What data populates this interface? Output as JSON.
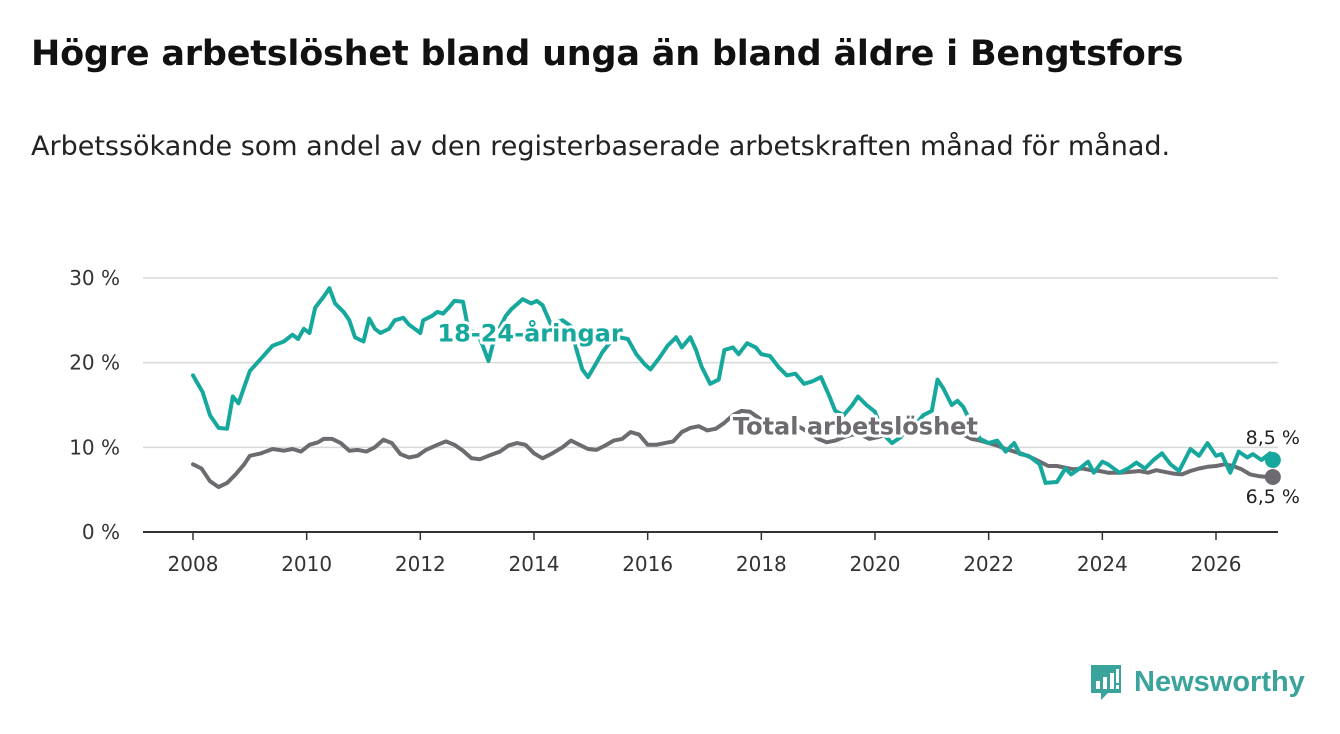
{
  "title": "Högre arbetslöshet bland unga än bland äldre i Bengtsfors",
  "subtitle": "Arbetssökande som andel av den registerbaserade arbetskraften månad för månad.",
  "brand": {
    "name": "Newsworthy",
    "icon": "newsworthy-logo-icon",
    "color": "#3aa39b"
  },
  "chart_data": {
    "type": "line",
    "title": "Högre arbetslöshet bland unga än bland äldre i Bengtsfors",
    "xlabel": "",
    "ylabel": "",
    "xlim": [
      2007.5,
      2027.1
    ],
    "ylim": [
      0,
      30
    ],
    "grid": true,
    "x_ticks": [
      2008,
      2010,
      2012,
      2014,
      2016,
      2018,
      2020,
      2022,
      2024,
      2026
    ],
    "x_tick_labels": [
      "2008",
      "2010",
      "2012",
      "2014",
      "2016",
      "2018",
      "2020",
      "2022",
      "2024",
      "2026"
    ],
    "y_ticks": [
      0,
      10,
      20,
      30
    ],
    "y_tick_labels": [
      "0 %",
      "10 %",
      "20 %",
      "30 %"
    ],
    "series": [
      {
        "name": "18-24-åringar",
        "color": "#16a89d",
        "end_label": "8,5 %",
        "points": [
          [
            2008.0,
            18.5
          ],
          [
            2008.17,
            16.5
          ],
          [
            2008.3,
            13.8
          ],
          [
            2008.45,
            12.3
          ],
          [
            2008.6,
            12.2
          ],
          [
            2008.7,
            16.0
          ],
          [
            2008.8,
            15.2
          ],
          [
            2009.0,
            19.0
          ],
          [
            2009.2,
            20.5
          ],
          [
            2009.4,
            22.0
          ],
          [
            2009.6,
            22.5
          ],
          [
            2009.75,
            23.3
          ],
          [
            2009.85,
            22.8
          ],
          [
            2009.95,
            24.0
          ],
          [
            2010.05,
            23.5
          ],
          [
            2010.15,
            26.5
          ],
          [
            2010.3,
            27.8
          ],
          [
            2010.4,
            28.8
          ],
          [
            2010.5,
            27.0
          ],
          [
            2010.65,
            26.0
          ],
          [
            2010.75,
            25.0
          ],
          [
            2010.85,
            23.0
          ],
          [
            2011.0,
            22.5
          ],
          [
            2011.1,
            25.2
          ],
          [
            2011.2,
            24.0
          ],
          [
            2011.3,
            23.5
          ],
          [
            2011.45,
            24.0
          ],
          [
            2011.55,
            25.0
          ],
          [
            2011.7,
            25.3
          ],
          [
            2011.8,
            24.5
          ],
          [
            2011.9,
            24.0
          ],
          [
            2012.0,
            23.5
          ],
          [
            2012.05,
            25.0
          ],
          [
            2012.2,
            25.5
          ],
          [
            2012.3,
            26.0
          ],
          [
            2012.4,
            25.8
          ],
          [
            2012.5,
            26.5
          ],
          [
            2012.6,
            27.3
          ],
          [
            2012.75,
            27.2
          ],
          [
            2012.85,
            23.8
          ],
          [
            2013.0,
            23.5
          ],
          [
            2013.1,
            22.0
          ],
          [
            2013.2,
            20.2
          ],
          [
            2013.3,
            22.8
          ],
          [
            2013.5,
            25.5
          ],
          [
            2013.6,
            26.3
          ],
          [
            2013.8,
            27.5
          ],
          [
            2013.95,
            27.0
          ],
          [
            2014.05,
            27.3
          ],
          [
            2014.15,
            26.8
          ],
          [
            2014.3,
            24.5
          ],
          [
            2014.5,
            25.0
          ],
          [
            2014.65,
            24.3
          ],
          [
            2014.75,
            21.5
          ],
          [
            2014.85,
            19.2
          ],
          [
            2014.95,
            18.3
          ],
          [
            2015.1,
            20.0
          ],
          [
            2015.2,
            21.2
          ],
          [
            2015.35,
            22.5
          ],
          [
            2015.5,
            23.0
          ],
          [
            2015.65,
            22.8
          ],
          [
            2015.8,
            21.0
          ],
          [
            2015.95,
            19.8
          ],
          [
            2016.05,
            19.2
          ],
          [
            2016.2,
            20.5
          ],
          [
            2016.35,
            22.0
          ],
          [
            2016.5,
            23.0
          ],
          [
            2016.6,
            21.8
          ],
          [
            2016.75,
            23.0
          ],
          [
            2016.85,
            21.5
          ],
          [
            2016.95,
            19.5
          ],
          [
            2017.1,
            17.5
          ],
          [
            2017.25,
            18.0
          ],
          [
            2017.35,
            21.5
          ],
          [
            2017.5,
            21.8
          ],
          [
            2017.6,
            21.0
          ],
          [
            2017.75,
            22.3
          ],
          [
            2017.9,
            21.8
          ],
          [
            2018.0,
            21.0
          ],
          [
            2018.15,
            20.8
          ],
          [
            2018.3,
            19.5
          ],
          [
            2018.45,
            18.5
          ],
          [
            2018.6,
            18.7
          ],
          [
            2018.75,
            17.5
          ],
          [
            2018.9,
            17.8
          ],
          [
            2019.05,
            18.3
          ],
          [
            2019.2,
            16.0
          ],
          [
            2019.3,
            14.3
          ],
          [
            2019.45,
            13.8
          ],
          [
            2019.6,
            15.0
          ],
          [
            2019.7,
            16.0
          ],
          [
            2019.85,
            15.0
          ],
          [
            2020.0,
            14.2
          ],
          [
            2020.15,
            11.5
          ],
          [
            2020.3,
            10.5
          ],
          [
            2020.45,
            11.2
          ],
          [
            2020.6,
            12.5
          ],
          [
            2020.75,
            13.0
          ],
          [
            2020.85,
            13.8
          ],
          [
            2021.0,
            14.3
          ],
          [
            2021.1,
            18.0
          ],
          [
            2021.2,
            17.0
          ],
          [
            2021.35,
            15.0
          ],
          [
            2021.45,
            15.5
          ],
          [
            2021.55,
            14.8
          ],
          [
            2021.7,
            12.8
          ],
          [
            2021.85,
            11.0
          ],
          [
            2022.0,
            10.5
          ],
          [
            2022.15,
            10.8
          ],
          [
            2022.3,
            9.5
          ],
          [
            2022.45,
            10.5
          ],
          [
            2022.55,
            9.2
          ],
          [
            2022.7,
            9.0
          ],
          [
            2022.8,
            8.5
          ],
          [
            2022.9,
            8.0
          ],
          [
            2023.0,
            5.8
          ],
          [
            2023.2,
            5.9
          ],
          [
            2023.35,
            7.5
          ],
          [
            2023.45,
            6.8
          ],
          [
            2023.6,
            7.5
          ],
          [
            2023.75,
            8.3
          ],
          [
            2023.85,
            7.0
          ],
          [
            2024.0,
            8.3
          ],
          [
            2024.1,
            8.0
          ],
          [
            2024.3,
            7.0
          ],
          [
            2024.45,
            7.5
          ],
          [
            2024.6,
            8.2
          ],
          [
            2024.75,
            7.5
          ],
          [
            2024.9,
            8.5
          ],
          [
            2025.05,
            9.3
          ],
          [
            2025.2,
            8.0
          ],
          [
            2025.35,
            7.2
          ],
          [
            2025.55,
            9.8
          ],
          [
            2025.7,
            9.0
          ],
          [
            2025.85,
            10.5
          ],
          [
            2026.0,
            9.0
          ],
          [
            2026.1,
            9.2
          ],
          [
            2026.25,
            7.0
          ],
          [
            2026.4,
            9.5
          ],
          [
            2026.55,
            8.8
          ],
          [
            2026.65,
            9.2
          ],
          [
            2026.8,
            8.5
          ],
          [
            2026.95,
            9.3
          ],
          [
            2027.0,
            8.5
          ]
        ]
      },
      {
        "name": "Total arbetslöshet",
        "color": "#6e6b70",
        "end_label": "6,5 %",
        "points": [
          [
            2008.0,
            8.0
          ],
          [
            2008.15,
            7.5
          ],
          [
            2008.3,
            6.0
          ],
          [
            2008.45,
            5.3
          ],
          [
            2008.6,
            5.8
          ],
          [
            2008.75,
            6.8
          ],
          [
            2008.9,
            8.0
          ],
          [
            2009.0,
            9.0
          ],
          [
            2009.2,
            9.3
          ],
          [
            2009.4,
            9.8
          ],
          [
            2009.6,
            9.6
          ],
          [
            2009.75,
            9.8
          ],
          [
            2009.9,
            9.5
          ],
          [
            2010.05,
            10.3
          ],
          [
            2010.2,
            10.6
          ],
          [
            2010.3,
            11.0
          ],
          [
            2010.45,
            11.0
          ],
          [
            2010.6,
            10.5
          ],
          [
            2010.75,
            9.6
          ],
          [
            2010.9,
            9.7
          ],
          [
            2011.05,
            9.5
          ],
          [
            2011.2,
            10.0
          ],
          [
            2011.35,
            10.9
          ],
          [
            2011.5,
            10.5
          ],
          [
            2011.65,
            9.2
          ],
          [
            2011.8,
            8.8
          ],
          [
            2011.95,
            9.0
          ],
          [
            2012.1,
            9.7
          ],
          [
            2012.3,
            10.3
          ],
          [
            2012.45,
            10.7
          ],
          [
            2012.6,
            10.3
          ],
          [
            2012.75,
            9.6
          ],
          [
            2012.9,
            8.7
          ],
          [
            2013.05,
            8.6
          ],
          [
            2013.2,
            9.0
          ],
          [
            2013.4,
            9.5
          ],
          [
            2013.55,
            10.2
          ],
          [
            2013.7,
            10.5
          ],
          [
            2013.85,
            10.3
          ],
          [
            2014.0,
            9.3
          ],
          [
            2014.15,
            8.7
          ],
          [
            2014.3,
            9.2
          ],
          [
            2014.5,
            10.0
          ],
          [
            2014.65,
            10.8
          ],
          [
            2014.8,
            10.3
          ],
          [
            2014.95,
            9.8
          ],
          [
            2015.1,
            9.7
          ],
          [
            2015.25,
            10.2
          ],
          [
            2015.4,
            10.8
          ],
          [
            2015.55,
            11.0
          ],
          [
            2015.7,
            11.8
          ],
          [
            2015.85,
            11.5
          ],
          [
            2016.0,
            10.3
          ],
          [
            2016.15,
            10.3
          ],
          [
            2016.3,
            10.5
          ],
          [
            2016.45,
            10.7
          ],
          [
            2016.6,
            11.8
          ],
          [
            2016.75,
            12.3
          ],
          [
            2016.9,
            12.5
          ],
          [
            2017.05,
            12.0
          ],
          [
            2017.2,
            12.2
          ],
          [
            2017.35,
            12.9
          ],
          [
            2017.5,
            13.8
          ],
          [
            2017.65,
            14.3
          ],
          [
            2017.8,
            14.2
          ],
          [
            2017.95,
            13.5
          ],
          [
            2018.1,
            12.7
          ],
          [
            2018.25,
            12.8
          ],
          [
            2018.4,
            12.6
          ],
          [
            2018.55,
            12.7
          ],
          [
            2018.7,
            12.3
          ],
          [
            2018.85,
            11.7
          ],
          [
            2019.0,
            11.0
          ],
          [
            2019.15,
            10.6
          ],
          [
            2019.3,
            10.8
          ],
          [
            2019.45,
            11.2
          ],
          [
            2019.6,
            11.5
          ],
          [
            2019.75,
            11.5
          ],
          [
            2019.9,
            11.0
          ],
          [
            2020.05,
            11.2
          ],
          [
            2020.2,
            11.5
          ],
          [
            2020.35,
            11.8
          ],
          [
            2020.5,
            12.0
          ],
          [
            2020.65,
            12.2
          ],
          [
            2020.8,
            12.0
          ],
          [
            2020.95,
            12.0
          ],
          [
            2021.1,
            12.3
          ],
          [
            2021.25,
            12.1
          ],
          [
            2021.4,
            11.7
          ],
          [
            2021.55,
            11.5
          ],
          [
            2021.7,
            11.0
          ],
          [
            2021.85,
            10.8
          ],
          [
            2022.0,
            10.5
          ],
          [
            2022.15,
            10.2
          ],
          [
            2022.3,
            9.8
          ],
          [
            2022.45,
            9.5
          ],
          [
            2022.6,
            9.2
          ],
          [
            2022.75,
            8.8
          ],
          [
            2022.9,
            8.3
          ],
          [
            2023.05,
            7.8
          ],
          [
            2023.2,
            7.8
          ],
          [
            2023.35,
            7.6
          ],
          [
            2023.5,
            7.4
          ],
          [
            2023.65,
            7.5
          ],
          [
            2023.8,
            7.3
          ],
          [
            2023.95,
            7.2
          ],
          [
            2024.1,
            7.0
          ],
          [
            2024.3,
            7.0
          ],
          [
            2024.5,
            7.1
          ],
          [
            2024.65,
            7.2
          ],
          [
            2024.8,
            7.0
          ],
          [
            2024.95,
            7.3
          ],
          [
            2025.1,
            7.1
          ],
          [
            2025.25,
            6.9
          ],
          [
            2025.4,
            6.8
          ],
          [
            2025.55,
            7.2
          ],
          [
            2025.7,
            7.5
          ],
          [
            2025.85,
            7.7
          ],
          [
            2026.0,
            7.8
          ],
          [
            2026.15,
            8.0
          ],
          [
            2026.3,
            7.8
          ],
          [
            2026.45,
            7.4
          ],
          [
            2026.6,
            6.8
          ],
          [
            2026.75,
            6.6
          ],
          [
            2026.9,
            6.5
          ],
          [
            2027.0,
            6.5
          ]
        ]
      }
    ]
  }
}
